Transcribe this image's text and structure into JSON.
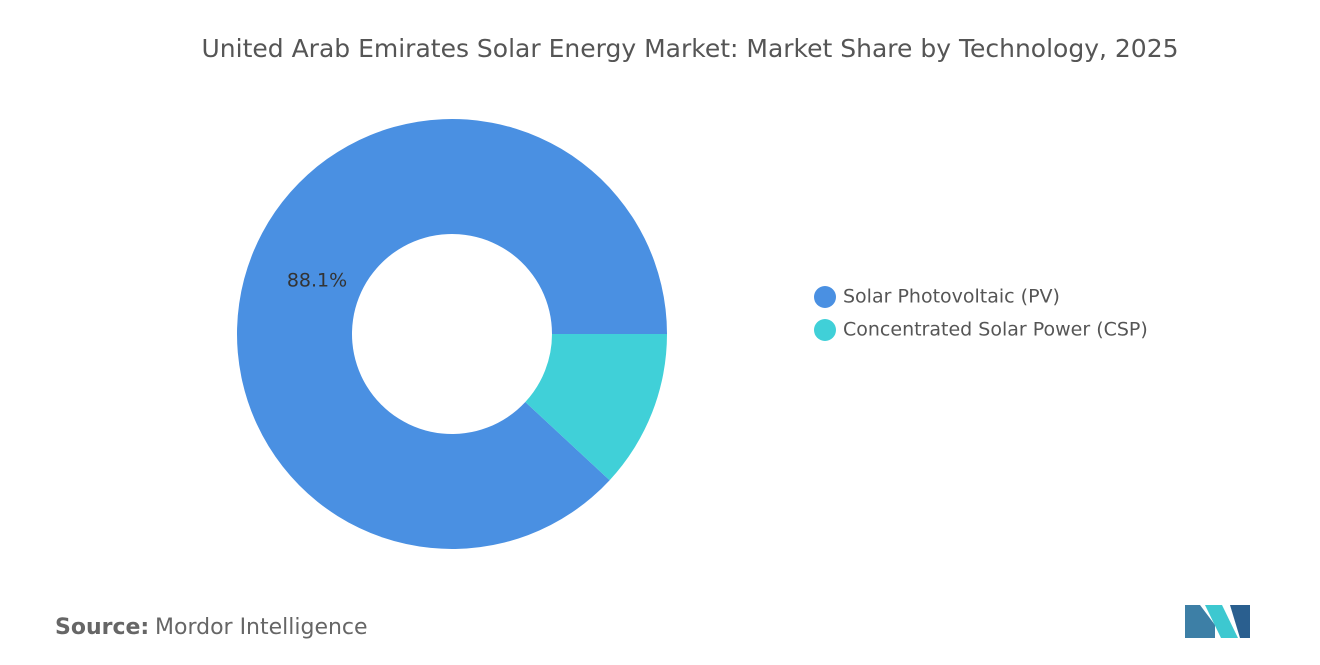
{
  "chart_data": {
    "type": "donut",
    "title": "United Arab Emirates Solar Energy Market: Market Share by Technology, 2025",
    "categories": [
      "Solar Photovoltaic (PV)",
      "Concentrated Solar Power (CSP)"
    ],
    "values": [
      88.1,
      11.9
    ],
    "value_labels": [
      "88.1%",
      null
    ],
    "colors": [
      "#4a90e2",
      "#40d0d8"
    ],
    "legend": "right",
    "source_label": "Source:",
    "source": "Mordor Intelligence"
  }
}
